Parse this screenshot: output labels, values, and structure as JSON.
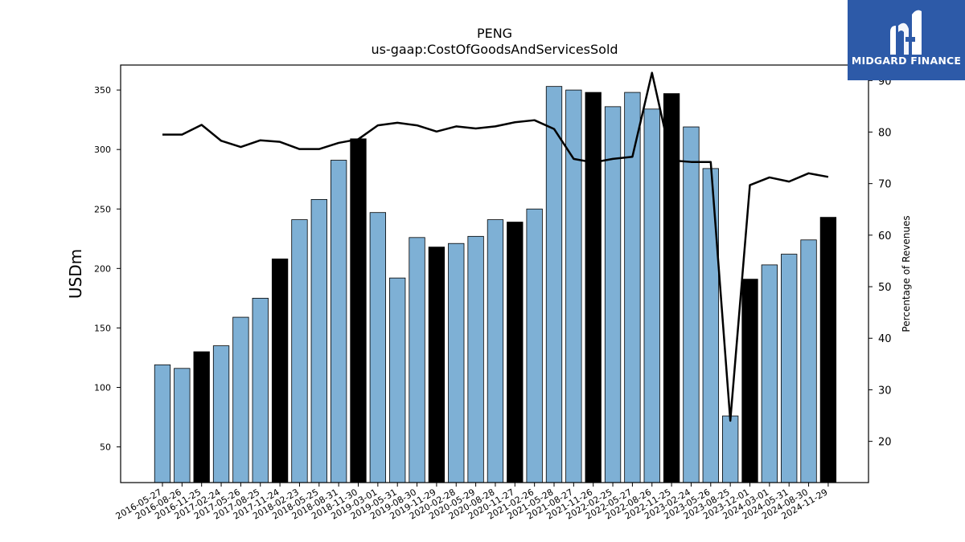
{
  "chart_data": {
    "type": "bar",
    "title": "PENG",
    "subtitle": "us-gaap:CostOfGoodsAndServicesSold",
    "ylabel": "USDm",
    "y2label": "Percentage of Revenues",
    "ylim": [
      20,
      371
    ],
    "y2lim": [
      12,
      93
    ],
    "yticks": [
      50,
      100,
      150,
      200,
      250,
      300,
      350
    ],
    "y2ticks": [
      20,
      30,
      40,
      50,
      60,
      70,
      80,
      90
    ],
    "categories": [
      "2016-05-27",
      "2016-08-26",
      "2016-11-25",
      "2017-02-24",
      "2017-05-26",
      "2017-08-25",
      "2017-11-24",
      "2018-02-23",
      "2018-05-25",
      "2018-08-31",
      "2018-11-30",
      "2019-03-01",
      "2019-05-31",
      "2019-08-30",
      "2019-11-29",
      "2020-02-28",
      "2020-05-29",
      "2020-08-28",
      "2020-11-27",
      "2021-02-26",
      "2021-05-28",
      "2021-08-27",
      "2021-11-26",
      "2022-02-25",
      "2022-05-27",
      "2022-08-26",
      "2022-11-25",
      "2023-02-24",
      "2023-05-26",
      "2023-08-25",
      "2023-12-01",
      "2024-03-01",
      "2024-05-31",
      "2024-08-30",
      "2024-11-29"
    ],
    "series": [
      {
        "type": "bar",
        "values": [
          119,
          116,
          130,
          135,
          159,
          175,
          208,
          241,
          258,
          291,
          309,
          247,
          192,
          226,
          218,
          221,
          227,
          241,
          239,
          250,
          353,
          350,
          348,
          336,
          348,
          334,
          347,
          319,
          284,
          76,
          191,
          203,
          212,
          224,
          243
        ],
        "highlight_indices": [
          2,
          6,
          10,
          14,
          18,
          22,
          26,
          30,
          34
        ],
        "color": "#7eb0d5",
        "highlight_color": "#000000"
      },
      {
        "type": "line",
        "axis": "secondary",
        "values": [
          79.5,
          79.5,
          81.4,
          78.3,
          77.1,
          78.4,
          78.1,
          76.7,
          76.7,
          77.9,
          78.6,
          81.3,
          81.8,
          81.3,
          80.1,
          81.1,
          80.7,
          81.1,
          81.9,
          82.3,
          80.6,
          74.8,
          74.1,
          74.8,
          75.2,
          91.5,
          74.5,
          74.2,
          74.2,
          24.0,
          69.7,
          71.2,
          70.4,
          72.0,
          71.3
        ],
        "color": "#000000"
      }
    ],
    "grid": false,
    "legend": "none"
  },
  "logo": {
    "text": "MIDGARD FINANCE",
    "color": "#2d5aa8"
  }
}
